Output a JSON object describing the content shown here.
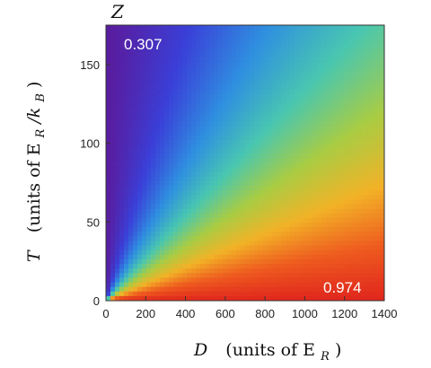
{
  "chart_data": {
    "type": "heatmap",
    "title": "Z",
    "xlabel": {
      "var": "D",
      "text": "(units of E",
      "sub": "R",
      "close": ")"
    },
    "ylabel": {
      "var": "T",
      "text": "(units of E",
      "sub": "R",
      "slash": "/k",
      "sub2": "B",
      "close": ")"
    },
    "xlim": [
      0,
      1400
    ],
    "ylim": [
      0,
      175
    ],
    "x_ticks": [
      "0",
      "200",
      "400",
      "600",
      "800",
      "1000",
      "1200",
      "1400"
    ],
    "x_tick_values": [
      0,
      200,
      400,
      600,
      800,
      1000,
      1200,
      1400
    ],
    "y_ticks": [
      "0",
      "50",
      "100",
      "150"
    ],
    "y_tick_values": [
      0,
      50,
      100,
      150
    ],
    "colormap": "rainbow",
    "corner_values": {
      "top_left": "0.307",
      "bottom_right": "0.974"
    },
    "value_range": [
      0.307,
      0.974
    ],
    "colors": [
      "#5a1c9e",
      "#3a3fd8",
      "#2f8fe0",
      "#49c7b0",
      "#a9cc43",
      "#f2b227",
      "#ee5a1f",
      "#e0261d"
    ]
  }
}
